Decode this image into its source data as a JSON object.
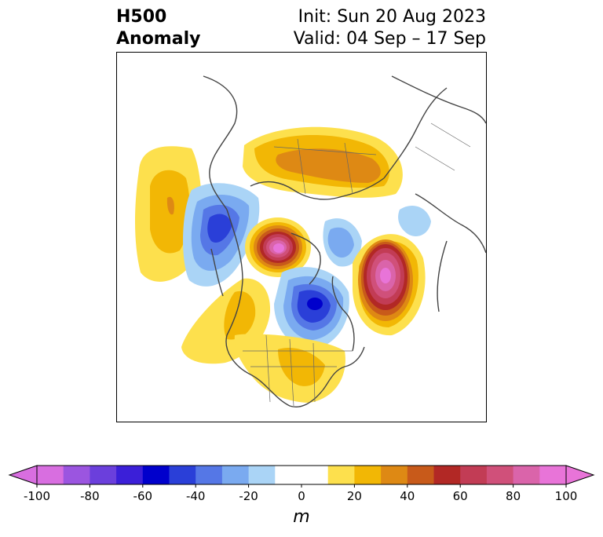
{
  "header": {
    "variable": "H500",
    "subtitle": "Anomaly",
    "init": "Init: Sun 20 Aug 2023",
    "valid": "Valid: 04 Sep – 17 Sep"
  },
  "colorbar": {
    "unit": "m",
    "tick_labels": [
      "-100",
      "-80",
      "-60",
      "-40",
      "-20",
      "0",
      "20",
      "40",
      "60",
      "80",
      "100"
    ],
    "tick_values": [
      -100,
      -80,
      -60,
      -40,
      -20,
      0,
      20,
      40,
      60,
      80,
      100
    ],
    "bins": [
      {
        "from": -100,
        "to": -90,
        "color": "#d86ee0"
      },
      {
        "from": -90,
        "to": -80,
        "color": "#9b55e0"
      },
      {
        "from": -80,
        "to": -70,
        "color": "#6b3fdc"
      },
      {
        "from": -70,
        "to": -60,
        "color": "#3b1fd8"
      },
      {
        "from": -60,
        "to": -50,
        "color": "#0000cc"
      },
      {
        "from": -50,
        "to": -40,
        "color": "#2a3fd8"
      },
      {
        "from": -40,
        "to": -30,
        "color": "#5577e6"
      },
      {
        "from": -30,
        "to": -20,
        "color": "#7aaaf0"
      },
      {
        "from": -20,
        "to": -10,
        "color": "#aad4f6"
      },
      {
        "from": -10,
        "to": 10,
        "color": "#ffffff"
      },
      {
        "from": 10,
        "to": 20,
        "color": "#fde04d"
      },
      {
        "from": 20,
        "to": 30,
        "color": "#f2b705"
      },
      {
        "from": 30,
        "to": 40,
        "color": "#de8914"
      },
      {
        "from": 40,
        "to": 50,
        "color": "#c85a1a"
      },
      {
        "from": 50,
        "to": 60,
        "color": "#b22825"
      },
      {
        "from": 60,
        "to": 70,
        "color": "#c23c55"
      },
      {
        "from": 70,
        "to": 80,
        "color": "#d0507a"
      },
      {
        "from": 80,
        "to": 90,
        "color": "#da64aa"
      },
      {
        "from": 90,
        "to": 100,
        "color": "#e874d8"
      }
    ],
    "under_color": "#d86ee0",
    "over_color": "#e874d8"
  },
  "map": {
    "projection": "north-polar-stereographic",
    "anomaly_centers": [
      {
        "region": "north-pacific",
        "sign": "positive",
        "peak": 35
      },
      {
        "region": "gulf-of-alaska",
        "sign": "negative",
        "peak": -45
      },
      {
        "region": "siberia",
        "sign": "positive",
        "peak": 35
      },
      {
        "region": "arctic-ocean",
        "sign": "positive",
        "peak": 95
      },
      {
        "region": "north-atlantic",
        "sign": "positive",
        "peak": 95
      },
      {
        "region": "hudson-bay",
        "sign": "negative",
        "peak": -55
      },
      {
        "region": "eastern-united-states",
        "sign": "positive",
        "peak": 25
      },
      {
        "region": "western-north-america",
        "sign": "positive",
        "peak": 25
      },
      {
        "region": "central-europe",
        "sign": "negative",
        "peak": -25
      },
      {
        "region": "eastern-siberia",
        "sign": "negative",
        "peak": -25
      }
    ]
  }
}
